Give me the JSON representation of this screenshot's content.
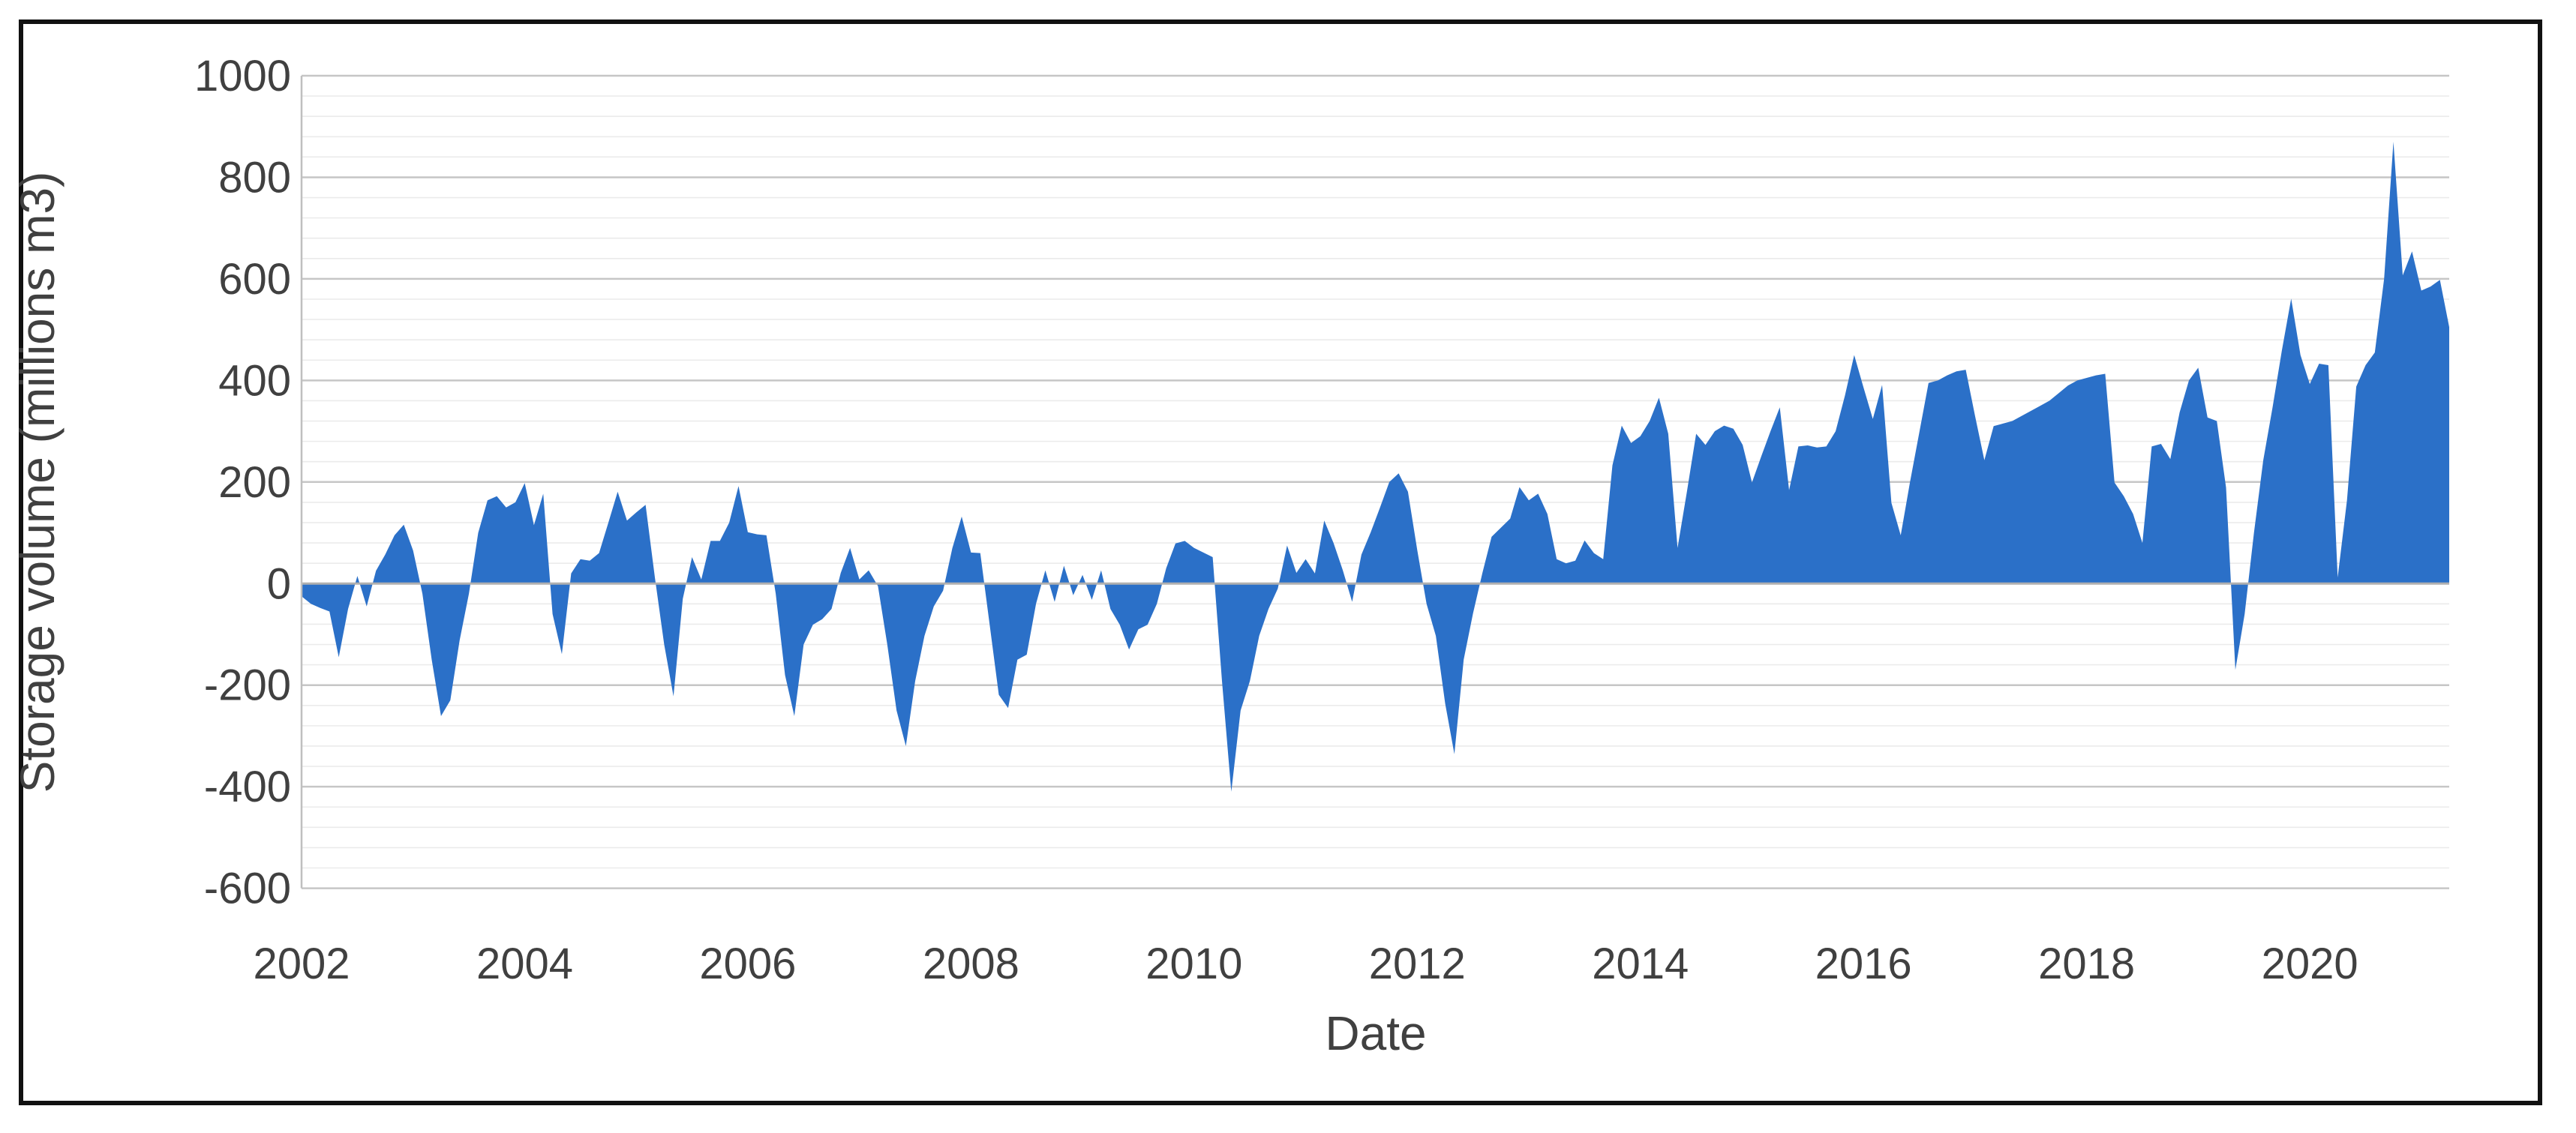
{
  "chart_data": {
    "type": "area",
    "title": "",
    "xlabel": "Date",
    "ylabel": "Storage volume (millions m3)",
    "ylim": [
      -600,
      1000
    ],
    "y_major_unit": 200,
    "y_minor_unit": 40,
    "y_tick_labels": [
      "1000",
      "800",
      "600",
      "400",
      "200",
      "0",
      "-200",
      "-400",
      "-600"
    ],
    "y_tick_values": [
      1000,
      800,
      600,
      400,
      200,
      0,
      -200,
      -400,
      -600
    ],
    "x_tick_labels": [
      "2002",
      "2004",
      "2006",
      "2008",
      "2010",
      "2012",
      "2014",
      "2016",
      "2018",
      "2020"
    ],
    "x_tick_years": [
      2002,
      2004,
      2006,
      2008,
      2010,
      2012,
      2014,
      2016,
      2018,
      2020
    ],
    "grid": "horizontal-minor-and-major",
    "legend_position": "none",
    "start_year": 2002,
    "frequency": "monthly",
    "series": [
      {
        "name": "Storage volume",
        "color": "#2b70c8",
        "values": [
          -25,
          -40,
          -48,
          -55,
          -145,
          -50,
          15,
          -45,
          25,
          57,
          95,
          116,
          65,
          -20,
          -150,
          -261,
          -230,
          -112,
          -20,
          100,
          164,
          172,
          150,
          160,
          198,
          115,
          177,
          -60,
          -139,
          20,
          48,
          45,
          60,
          120,
          181,
          124,
          140,
          155,
          12,
          -120,
          -222,
          -30,
          52,
          8,
          84,
          84,
          120,
          192,
          101,
          97,
          95,
          -20,
          -180,
          -261,
          -120,
          -81,
          -70,
          -50,
          21,
          70,
          8,
          26,
          -5,
          -120,
          -250,
          -320,
          -192,
          -103,
          -45,
          -14,
          70,
          132,
          61,
          60,
          -80,
          -219,
          -245,
          -150,
          -140,
          -40,
          26,
          -36,
          35,
          -23,
          17,
          -32,
          26,
          -50,
          -81,
          -130,
          -90,
          -81,
          -40,
          30,
          79,
          84,
          70,
          61,
          52,
          -192,
          -410,
          -250,
          -192,
          -103,
          -50,
          -10,
          75,
          21,
          48,
          20,
          124,
          80,
          26,
          -36,
          57,
          101,
          150,
          200,
          217,
          181,
          66,
          -40,
          -103,
          -236,
          -336,
          -150,
          -59,
          20,
          92,
          110,
          128,
          190,
          164,
          177,
          137,
          48,
          40,
          45,
          85,
          60,
          48,
          233,
          311,
          277,
          290,
          320,
          366,
          295,
          70,
          180,
          295,
          273,
          300,
          311,
          305,
          273,
          199,
          250,
          300,
          347,
          184,
          270,
          272,
          268,
          270,
          300,
          370,
          450,
          386,
          324,
          391,
          159,
          95,
          200,
          297,
          395,
          400,
          410,
          418,
          421,
          330,
          243,
          310,
          315,
          320,
          330,
          340,
          350,
          360,
          375,
          390,
          400,
          405,
          410,
          413,
          199,
          172,
          137,
          80,
          270,
          275,
          245,
          337,
          400,
          425,
          327,
          320,
          189,
          -170,
          -60,
          100,
          243,
          347,
          459,
          561,
          450,
          393,
          433,
          430,
          12,
          164,
          388,
          430,
          455,
          600,
          870,
          607,
          654,
          577,
          585,
          598,
          505
        ]
      }
    ],
    "style": {
      "area_fill": "#2b70c8",
      "minor_gridline_color": "#ebebeb",
      "major_gridline_color": "#c6c6c6",
      "zero_line_color": "#b0b0b0",
      "axis_line_color": "#bfbfbf",
      "text_color": "#404040",
      "figure_border_color": "#111111",
      "background": "#ffffff"
    }
  }
}
